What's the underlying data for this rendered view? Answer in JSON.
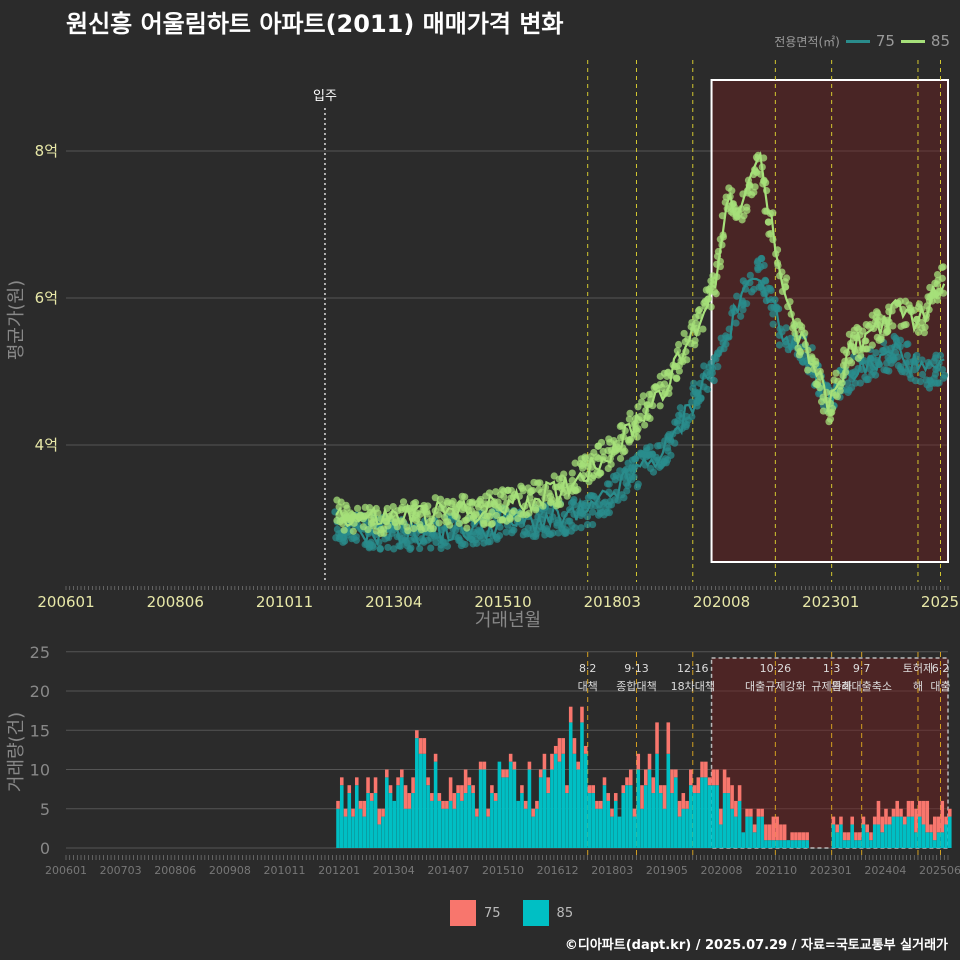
{
  "title": "원신흥 어울림하트 아파트(2011) 매매가격 변화",
  "legend_top": {
    "title": "전용면적(㎡)",
    "items": [
      {
        "label": "75",
        "color": "#2a8c8c"
      },
      {
        "label": "85",
        "color": "#a6e07a"
      }
    ]
  },
  "legend_bottom": {
    "items": [
      {
        "label": "75",
        "color": "#f8766d"
      },
      {
        "label": "85",
        "color": "#00bfc4"
      }
    ]
  },
  "footer": "©디아파트(dapt.kr) / 2025.07.29 / 자료=국토교통부 실거래가",
  "chart_data": [
    {
      "type": "line",
      "ylabel": "평균가(원)",
      "xlabel": "거래년월",
      "y_ticks": [
        {
          "v": 4,
          "label": "4억"
        },
        {
          "v": 6,
          "label": "6억"
        },
        {
          "v": 8,
          "label": "8억"
        }
      ],
      "x_ticks": [
        "200601",
        "200806",
        "201011",
        "201304",
        "201510",
        "201803",
        "202008",
        "202301",
        "2025"
      ],
      "annotation": "입주",
      "series": [
        {
          "name": "75",
          "color": "#2a8c8c",
          "x": [
            "2012-01",
            "2013-01",
            "2014-01",
            "2015-01",
            "2016-01",
            "2017-01",
            "2017-09",
            "2018-06",
            "2019-06",
            "2020-01",
            "2020-08",
            "2021-01",
            "2021-06",
            "2021-11",
            "2022-06",
            "2022-12",
            "2023-06",
            "2024-01",
            "2024-06",
            "2025-01",
            "2025-07"
          ],
          "values": [
            2.9,
            2.8,
            2.8,
            2.85,
            2.95,
            3.0,
            3.1,
            3.5,
            4.0,
            4.7,
            5.3,
            6.0,
            6.4,
            5.6,
            5.3,
            4.6,
            5.0,
            5.1,
            5.3,
            5.0,
            5.0
          ]
        },
        {
          "name": "85",
          "color": "#a6e07a",
          "x": [
            "2012-01",
            "2012-06",
            "2013-01",
            "2014-01",
            "2015-01",
            "2016-01",
            "2017-01",
            "2017-09",
            "2018-06",
            "2019-01",
            "2019-06",
            "2020-01",
            "2020-06",
            "2020-09",
            "2021-01",
            "2021-06",
            "2021-08",
            "2021-11",
            "2022-03",
            "2022-09",
            "2022-12",
            "2023-03",
            "2023-06",
            "2024-01",
            "2024-06",
            "2025-01",
            "2025-07"
          ],
          "values": [
            3.1,
            3.0,
            3.0,
            3.05,
            3.1,
            3.2,
            3.4,
            3.7,
            4.1,
            4.6,
            4.9,
            5.6,
            6.2,
            7.4,
            7.2,
            7.9,
            7.2,
            6.5,
            5.6,
            5.0,
            4.5,
            4.9,
            5.3,
            5.6,
            5.8,
            5.7,
            6.3
          ]
        }
      ]
    },
    {
      "type": "bar",
      "ylabel": "거래량(건)",
      "y_ticks": [
        0,
        5,
        10,
        15,
        20,
        25
      ],
      "x_ticks": [
        "200601",
        "200703",
        "200806",
        "200908",
        "201011",
        "201201",
        "201304",
        "201407",
        "201510",
        "201612",
        "201803",
        "201905",
        "202008",
        "202110",
        "202301",
        "202404",
        "202506"
      ],
      "series_names": [
        "75",
        "85"
      ],
      "policy_labels": [
        {
          "date": "2017-08",
          "text": "8·2 대책"
        },
        {
          "date": "2018-09",
          "text": "9·13 종합대책"
        },
        {
          "date": "2019-12",
          "text": "12·16 18차대책"
        },
        {
          "date": "2021-10",
          "text": "10·26 대출규제강화"
        },
        {
          "date": "2023-01",
          "text": "1·3 규제완화"
        },
        {
          "date": "2023-09",
          "text": "9·7 특례대출축소"
        },
        {
          "date": "2024-12",
          "text": "토허제 해"
        },
        {
          "date": "2025-06",
          "text": "6·2 대출"
        }
      ],
      "months": [
        "2012-01",
        "2012-07",
        "2013-01",
        "2013-07",
        "2014-01",
        "2014-07",
        "2015-01",
        "2015-07",
        "2016-01",
        "2016-07",
        "2017-01",
        "2017-07",
        "2018-01",
        "2018-07",
        "2019-01",
        "2019-07",
        "2020-01",
        "2020-07",
        "2021-01",
        "2021-07",
        "2022-01",
        "2022-07",
        "2023-01",
        "2023-07",
        "2024-01",
        "2024-07",
        "2025-01",
        "2025-07"
      ],
      "values_75": [
        1,
        2,
        1,
        2,
        1,
        2,
        1,
        1,
        1,
        2,
        2,
        1,
        1,
        2,
        3,
        2,
        2,
        3,
        1,
        2,
        1,
        0,
        1,
        1,
        2,
        2,
        3,
        1
      ],
      "values_85": [
        7,
        5,
        6,
        10,
        8,
        6,
        7,
        8,
        7,
        8,
        11,
        8,
        6,
        7,
        9,
        6,
        8,
        5,
        3,
        1,
        1,
        0,
        2,
        2,
        3,
        4,
        2,
        3
      ]
    }
  ]
}
